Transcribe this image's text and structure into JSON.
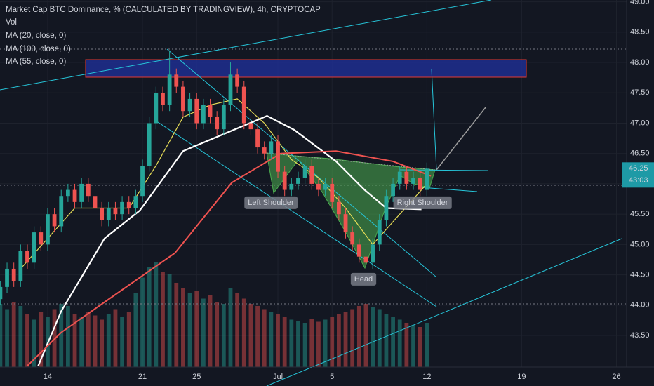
{
  "chart_data": {
    "type": "candlestick",
    "title": "Market Cap BTC Dominance, % (CALCULATED BY TRADINGVIEW), 4h, CRYPTOCAP",
    "volume_label": "Vol",
    "up_color": "#26a69a",
    "down_color": "#ef5350",
    "grid": true,
    "xlim": [
      9.48,
      55.75
    ],
    "ylim": [
      42.98,
      49.03
    ],
    "xticks": [
      {
        "value": 13,
        "label": "14"
      },
      {
        "value": 20,
        "label": "21"
      },
      {
        "value": 24,
        "label": "25"
      },
      {
        "value": 30,
        "label": "Jul"
      },
      {
        "value": 34,
        "label": "5"
      },
      {
        "value": 41,
        "label": "12"
      },
      {
        "value": 48,
        "label": "19"
      },
      {
        "value": 55,
        "label": "26"
      }
    ],
    "yticks": [
      {
        "value": 43.5,
        "label": "43.50"
      },
      {
        "value": 44,
        "label": "44.00"
      },
      {
        "value": 44.5,
        "label": "44.50"
      },
      {
        "value": 45,
        "label": "45.00"
      },
      {
        "value": 45.5,
        "label": "45.50"
      },
      {
        "value": 46,
        "label": "46.00"
      },
      {
        "value": 46.5,
        "label": "46.50"
      },
      {
        "value": 47,
        "label": "47.00"
      },
      {
        "value": 47.5,
        "label": "47.50"
      },
      {
        "value": 48,
        "label": "48.00"
      },
      {
        "value": 48.5,
        "label": "48.50"
      },
      {
        "value": 49,
        "label": "49.00"
      }
    ],
    "x": [
      9.5,
      10,
      10.5,
      11,
      11.5,
      12,
      12.5,
      13,
      13.5,
      14,
      14.5,
      15,
      15.5,
      16,
      16.5,
      17,
      17.5,
      18,
      18.5,
      19,
      19.5,
      20,
      20.5,
      21,
      21.5,
      22,
      22.5,
      23,
      23.5,
      24,
      24.5,
      25,
      25.5,
      26,
      26.5,
      27,
      27.5,
      28,
      28.5,
      29,
      29.5,
      30,
      30.5,
      31,
      31.5,
      32,
      32.5,
      33,
      33.5,
      34,
      34.5,
      35,
      35.5,
      36,
      36.5,
      37,
      37.5,
      38,
      38.5,
      39,
      39.5,
      40,
      40.5,
      41
    ],
    "open": [
      44.1,
      44.3,
      44.6,
      44.4,
      44.9,
      44.7,
      45.2,
      45.0,
      45.5,
      45.3,
      45.8,
      45.9,
      45.7,
      46.0,
      45.8,
      45.6,
      45.4,
      45.6,
      45.5,
      45.7,
      45.6,
      45.8,
      46.3,
      47.0,
      47.5,
      47.3,
      47.8,
      47.6,
      47.2,
      47.4,
      47.0,
      47.3,
      47.1,
      46.9,
      47.3,
      47.8,
      47.6,
      47.0,
      46.9,
      46.6,
      46.5,
      46.7,
      46.2,
      45.9,
      46.0,
      46.1,
      46.3,
      46.0,
      45.9,
      46.0,
      45.7,
      45.5,
      45.2,
      45.0,
      44.8,
      44.7,
      45.0,
      45.4,
      45.8,
      46.0,
      46.2,
      46.0,
      46.1,
      45.9
    ],
    "high": [
      44.4,
      44.7,
      44.7,
      45.0,
      45.0,
      45.3,
      45.3,
      45.6,
      45.6,
      45.9,
      46.0,
      46.0,
      46.1,
      46.1,
      45.9,
      45.7,
      45.7,
      45.7,
      45.8,
      45.8,
      45.9,
      46.4,
      47.1,
      47.6,
      47.6,
      48.2,
      47.9,
      47.7,
      47.5,
      47.5,
      47.4,
      47.4,
      47.2,
      47.4,
      48.0,
      47.9,
      47.7,
      47.1,
      47.0,
      46.7,
      46.8,
      46.8,
      46.3,
      46.1,
      46.2,
      46.4,
      46.4,
      46.1,
      46.1,
      46.1,
      45.8,
      45.6,
      45.3,
      45.1,
      44.9,
      45.1,
      45.5,
      45.9,
      46.1,
      46.3,
      46.3,
      46.2,
      46.2,
      46.35
    ],
    "low": [
      44.0,
      44.2,
      44.3,
      44.3,
      44.6,
      44.6,
      44.9,
      44.9,
      45.2,
      45.2,
      45.7,
      45.6,
      45.6,
      45.7,
      45.5,
      45.3,
      45.3,
      45.4,
      45.4,
      45.5,
      45.5,
      45.7,
      46.2,
      46.9,
      47.2,
      47.2,
      47.5,
      47.1,
      47.1,
      46.9,
      46.9,
      47.0,
      46.8,
      46.8,
      47.2,
      47.5,
      46.9,
      46.8,
      46.5,
      46.4,
      46.4,
      46.1,
      45.8,
      45.8,
      45.9,
      46.0,
      45.9,
      45.8,
      45.8,
      45.6,
      45.4,
      45.1,
      44.9,
      44.7,
      44.6,
      44.6,
      44.9,
      45.3,
      45.7,
      45.9,
      45.9,
      45.9,
      45.8,
      45.8
    ],
    "close": [
      44.3,
      44.6,
      44.4,
      44.9,
      44.7,
      45.2,
      45.0,
      45.5,
      45.3,
      45.8,
      45.9,
      45.7,
      46.0,
      45.8,
      45.6,
      45.4,
      45.6,
      45.5,
      45.7,
      45.6,
      45.8,
      46.3,
      47.0,
      47.5,
      47.3,
      47.8,
      47.6,
      47.2,
      47.4,
      47.0,
      47.3,
      47.1,
      46.9,
      47.3,
      47.8,
      47.6,
      47.0,
      46.9,
      46.6,
      46.5,
      46.7,
      46.2,
      45.9,
      46.0,
      46.1,
      46.3,
      46.0,
      45.9,
      46.0,
      45.7,
      45.5,
      45.2,
      45.0,
      44.8,
      44.7,
      45.0,
      45.4,
      45.8,
      46.0,
      46.2,
      46.0,
      46.1,
      45.9,
      46.25
    ],
    "volume": [
      60,
      55,
      62,
      58,
      50,
      45,
      52,
      48,
      55,
      60,
      58,
      50,
      47,
      52,
      49,
      45,
      50,
      55,
      48,
      52,
      70,
      85,
      95,
      100,
      90,
      88,
      80,
      75,
      70,
      72,
      65,
      68,
      62,
      60,
      75,
      70,
      65,
      60,
      58,
      55,
      52,
      50,
      48,
      45,
      44,
      42,
      46,
      43,
      45,
      48,
      50,
      52,
      55,
      58,
      60,
      57,
      55,
      50,
      48,
      45,
      42,
      40,
      38,
      42
    ],
    "series": [
      {
        "name": "MA (20, close, 0)",
        "color": "#e8de57",
        "x": [
          11,
          13,
          15,
          17,
          19,
          21,
          23,
          25,
          27,
          29,
          31,
          33,
          35,
          37,
          39,
          41
        ],
        "values": [
          44.6,
          45.1,
          45.6,
          45.6,
          45.6,
          46.3,
          47.1,
          47.3,
          47.4,
          47.0,
          46.4,
          46.1,
          45.6,
          45.0,
          45.5,
          46.0
        ]
      },
      {
        "name": "MA (100, close, 0)",
        "color": "#ffffff",
        "x": [
          12.3,
          14,
          17.2,
          19.8,
          23,
          26.1,
          29.2,
          31.2,
          34.3,
          36.4,
          38,
          40.6
        ],
        "values": [
          43.0,
          43.9,
          45.1,
          45.56,
          46.54,
          46.83,
          47.12,
          46.89,
          46.37,
          45.9,
          45.6,
          45.58
        ]
      },
      {
        "name": "MA (55, close, 0)",
        "color": "#ef5350",
        "x": [
          11.5,
          14,
          17.2,
          22.4,
          26.6,
          30.2,
          34.3,
          38.5,
          41.3
        ],
        "values": [
          43.0,
          43.55,
          44.05,
          44.86,
          46.02,
          46.5,
          46.54,
          46.37,
          46.13
        ]
      }
    ],
    "annotations": [
      "Left Shoulder",
      "Head",
      "Right Shoulder"
    ],
    "last_price": 46.25,
    "countdown": "43:03"
  }
}
